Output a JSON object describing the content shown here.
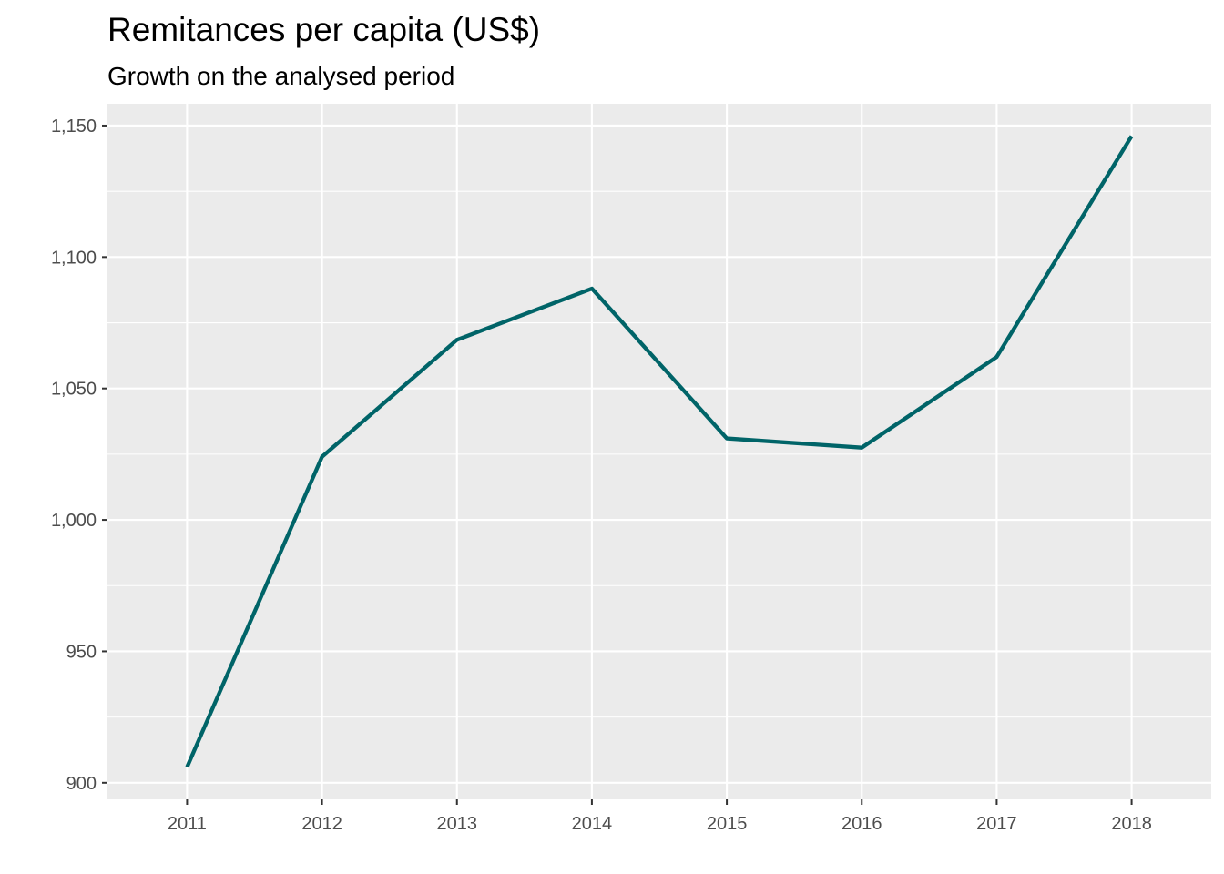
{
  "chart_data": {
    "type": "line",
    "title": "Remitances per capita (US$)",
    "subtitle": "Growth on the analysed period",
    "xlabel": "",
    "ylabel": "",
    "x": [
      2011,
      2012,
      2013,
      2014,
      2015,
      2016,
      2017,
      2018
    ],
    "series": [
      {
        "values": [
          906,
          1024,
          1068.5,
          1088,
          1031,
          1027.5,
          1062,
          1146
        ],
        "color": "#006468"
      }
    ],
    "x_ticks": [
      "2011",
      "2012",
      "2013",
      "2014",
      "2015",
      "2016",
      "2017",
      "2018"
    ],
    "y_ticks": [
      {
        "value": 900,
        "label": "900"
      },
      {
        "value": 950,
        "label": "950"
      },
      {
        "value": 1000,
        "label": "1,000"
      },
      {
        "value": 1050,
        "label": "1,050"
      },
      {
        "value": 1100,
        "label": "1,100"
      },
      {
        "value": 1150,
        "label": "1,150"
      }
    ],
    "xlim": [
      2010.41,
      2018.59
    ],
    "ylim": [
      893.7,
      1158.3
    ],
    "grid": true,
    "legend": "none",
    "panel_color": "#ebebeb",
    "grid_color": "#ffffff"
  }
}
